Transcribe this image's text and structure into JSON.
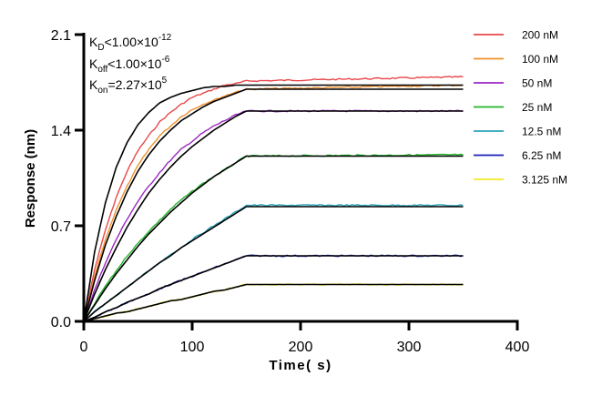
{
  "chart_data": {
    "type": "line",
    "title": "",
    "xlabel": "Time( s)",
    "ylabel": "Response (nm)",
    "xlim": [
      0,
      400
    ],
    "ylim": [
      0,
      2.1
    ],
    "x_ticks": [
      "0",
      "100",
      "200",
      "300",
      "400"
    ],
    "y_ticks": [
      "0.0",
      "0.7",
      "1.4",
      "2.1"
    ],
    "grid": false,
    "legend_position": "top-right",
    "annotations": {
      "kd": {
        "label": "K",
        "sub": "D",
        "rest": "<1.00×10",
        "sup": "-12"
      },
      "koff": {
        "label": "K",
        "sub": "off",
        "rest": "<1.00×10",
        "sup": "-6"
      },
      "kon": {
        "label": "K",
        "sub": "on",
        "rest": "=2.27×10",
        "sup": "5"
      }
    },
    "x": [
      0,
      10,
      20,
      30,
      40,
      50,
      60,
      70,
      80,
      90,
      100,
      110,
      120,
      130,
      140,
      150,
      350
    ],
    "series": [
      {
        "name": "200 nM",
        "color": "#e8474a",
        "values": [
          0,
          0.38,
          0.67,
          0.91,
          1.1,
          1.25,
          1.36,
          1.46,
          1.53,
          1.59,
          1.64,
          1.67,
          1.7,
          1.73,
          1.74,
          1.76,
          1.79
        ]
      },
      {
        "name": "100 nM",
        "color": "#f0902c",
        "values": [
          0,
          0.33,
          0.6,
          0.82,
          0.99,
          1.14,
          1.26,
          1.36,
          1.43,
          1.5,
          1.55,
          1.59,
          1.62,
          1.65,
          1.68,
          1.7,
          1.73
        ]
      },
      {
        "name": "50 nM",
        "color": "#9b27c4",
        "values": [
          0,
          0.23,
          0.43,
          0.6,
          0.75,
          0.88,
          0.99,
          1.09,
          1.18,
          1.26,
          1.32,
          1.38,
          1.43,
          1.47,
          1.51,
          1.54,
          1.54
        ]
      },
      {
        "name": "25 nM",
        "color": "#21b32a",
        "values": [
          0,
          0.13,
          0.26,
          0.37,
          0.48,
          0.57,
          0.66,
          0.74,
          0.82,
          0.89,
          0.95,
          1.01,
          1.06,
          1.11,
          1.16,
          1.21,
          1.22
        ]
      },
      {
        "name": "12.5 nM",
        "color": "#2aa3b8",
        "values": [
          0,
          0.07,
          0.13,
          0.19,
          0.25,
          0.31,
          0.37,
          0.43,
          0.49,
          0.54,
          0.6,
          0.65,
          0.7,
          0.75,
          0.8,
          0.85,
          0.85
        ]
      },
      {
        "name": "6.25 nM",
        "color": "#1a22b8",
        "values": [
          0,
          0.03,
          0.07,
          0.1,
          0.14,
          0.17,
          0.2,
          0.24,
          0.27,
          0.3,
          0.33,
          0.36,
          0.39,
          0.42,
          0.45,
          0.48,
          0.48
        ]
      },
      {
        "name": "3.125 nM",
        "color": "#f2ea2a",
        "values": [
          0,
          0.02,
          0.04,
          0.06,
          0.07,
          0.09,
          0.11,
          0.13,
          0.15,
          0.16,
          0.18,
          0.2,
          0.22,
          0.23,
          0.25,
          0.27,
          0.27
        ]
      }
    ],
    "fits": [
      {
        "name": "fit 200 nM",
        "color": "#000000",
        "values": [
          0,
          0.51,
          0.87,
          1.13,
          1.31,
          1.44,
          1.53,
          1.6,
          1.64,
          1.67,
          1.69,
          1.71,
          1.72,
          1.72,
          1.73,
          1.73,
          1.73
        ]
      },
      {
        "name": "fit 100 nM",
        "color": "#000000",
        "values": [
          0,
          0.3,
          0.56,
          0.77,
          0.95,
          1.1,
          1.22,
          1.32,
          1.4,
          1.47,
          1.52,
          1.57,
          1.61,
          1.64,
          1.67,
          1.7,
          1.7
        ]
      },
      {
        "name": "fit 50 nM",
        "color": "#000000",
        "values": [
          0,
          0.2,
          0.38,
          0.54,
          0.69,
          0.82,
          0.94,
          1.04,
          1.13,
          1.21,
          1.28,
          1.34,
          1.4,
          1.45,
          1.5,
          1.54,
          1.54
        ]
      },
      {
        "name": "fit 25 nM",
        "color": "#000000",
        "values": [
          0,
          0.12,
          0.24,
          0.35,
          0.45,
          0.55,
          0.64,
          0.72,
          0.8,
          0.87,
          0.94,
          1.0,
          1.06,
          1.11,
          1.16,
          1.21,
          1.21
        ]
      },
      {
        "name": "fit 12.5 nM",
        "color": "#000000",
        "values": [
          0,
          0.07,
          0.13,
          0.19,
          0.25,
          0.31,
          0.37,
          0.43,
          0.48,
          0.54,
          0.59,
          0.64,
          0.69,
          0.74,
          0.79,
          0.84,
          0.84
        ]
      },
      {
        "name": "fit 6.25 nM",
        "color": "#000000",
        "values": [
          0,
          0.03,
          0.07,
          0.1,
          0.14,
          0.17,
          0.2,
          0.24,
          0.27,
          0.3,
          0.33,
          0.36,
          0.39,
          0.42,
          0.45,
          0.48,
          0.48
        ]
      },
      {
        "name": "fit 3.125 nM",
        "color": "#000000",
        "values": [
          0,
          0.02,
          0.04,
          0.06,
          0.07,
          0.09,
          0.11,
          0.13,
          0.15,
          0.16,
          0.18,
          0.2,
          0.22,
          0.23,
          0.25,
          0.27,
          0.27
        ]
      }
    ]
  }
}
